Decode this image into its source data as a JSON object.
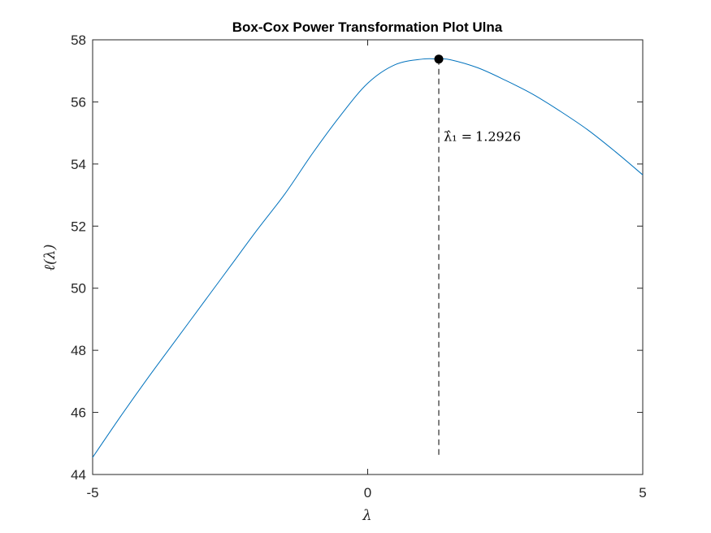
{
  "chart_data": {
    "type": "line",
    "title": "Box-Cox Power Transformation Plot Ulna",
    "xlabel": "λ",
    "ylabel": "ℓ(λ)",
    "xlim": [
      -5,
      5
    ],
    "ylim": [
      44,
      58
    ],
    "xticks": [
      -5,
      0,
      5
    ],
    "xtick_labels": [
      "-5",
      "0",
      "5"
    ],
    "yticks": [
      44,
      46,
      48,
      50,
      52,
      54,
      56,
      58
    ],
    "ytick_labels": [
      "44",
      "46",
      "48",
      "50",
      "52",
      "54",
      "56",
      "58"
    ],
    "grid": false,
    "legend": "none",
    "series": [
      {
        "color": "#0072BD",
        "x": [
          -5,
          -4.5,
          -4,
          -3.5,
          -3,
          -2.5,
          -2,
          -1.5,
          -1,
          -0.5,
          0,
          0.5,
          1,
          1.2926,
          1.5,
          2,
          2.5,
          3,
          3.5,
          4,
          4.5,
          5
        ],
        "y": [
          44.55,
          45.85,
          47.1,
          48.3,
          49.5,
          50.7,
          51.9,
          53.05,
          54.35,
          55.55,
          56.6,
          57.2,
          57.38,
          57.38,
          57.36,
          57.1,
          56.7,
          56.25,
          55.7,
          55.1,
          54.4,
          53.65
        ]
      }
    ],
    "optimum": {
      "lambda": 1.2926,
      "loglik": 57.38,
      "label_prefix": "λ̂₁ =",
      "label_value": "1.2926",
      "marker_color": "#000000",
      "dashed_line_bottom": 44.6
    }
  }
}
